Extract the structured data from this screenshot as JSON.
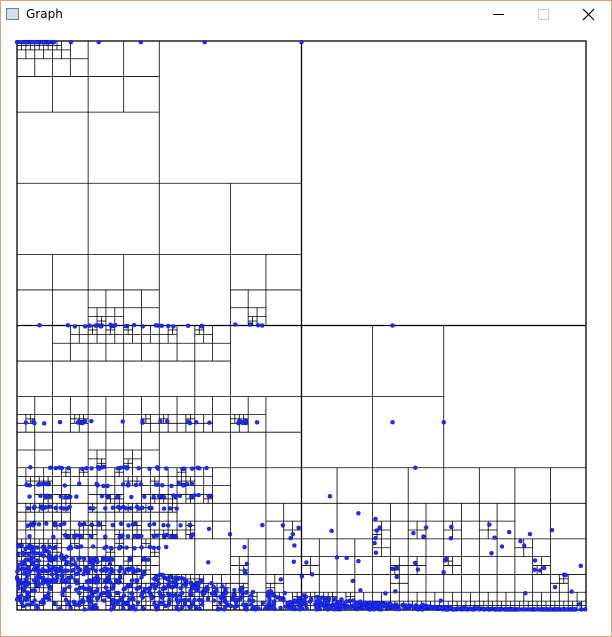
{
  "window": {
    "title": "Graph"
  }
}
